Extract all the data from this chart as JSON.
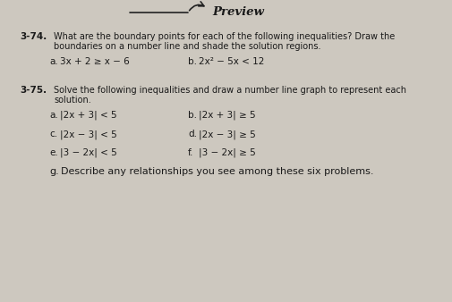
{
  "background_color": "#cdc8bf",
  "preview_text": "Preview",
  "problem_374_number": "3-74.",
  "problem_374_text1": "What are the boundary points for each of the following inequalities? Draw the",
  "problem_374_text2": "boundaries on a number line and shade the solution regions.",
  "problem_374a_label": "a.",
  "problem_374a_expr": "3x + 2 ≥ x − 6",
  "problem_374b_label": "b.",
  "problem_374b_expr": "2x² − 5x < 12",
  "problem_375_number": "3-75.",
  "problem_375_text1": "Solve the following inequalities and draw a number line graph to represent each",
  "problem_375_text2": "solution.",
  "problem_375a_label": "a.",
  "problem_375a_expr": "|2x + 3| < 5",
  "problem_375b_label": "b.",
  "problem_375b_expr": "|2x + 3| ≥ 5",
  "problem_375c_label": "c.",
  "problem_375c_expr": "|2x − 3| < 5",
  "problem_375d_label": "d.",
  "problem_375d_expr": "|2x − 3| ≥ 5",
  "problem_375e_label": "e.",
  "problem_375e_expr": "|3 − 2x| < 5",
  "problem_375f_label": "f.",
  "problem_375f_expr": "|3 − 2x| ≥ 5",
  "problem_375g_label": "g.",
  "problem_375g_text": "Describe any relationships you see among these six problems.",
  "text_color": "#1a1a1a",
  "fs_preview": 9.5,
  "fs_number": 7.5,
  "fs_body": 7.0,
  "fs_expr": 7.5,
  "fs_g": 8.0
}
